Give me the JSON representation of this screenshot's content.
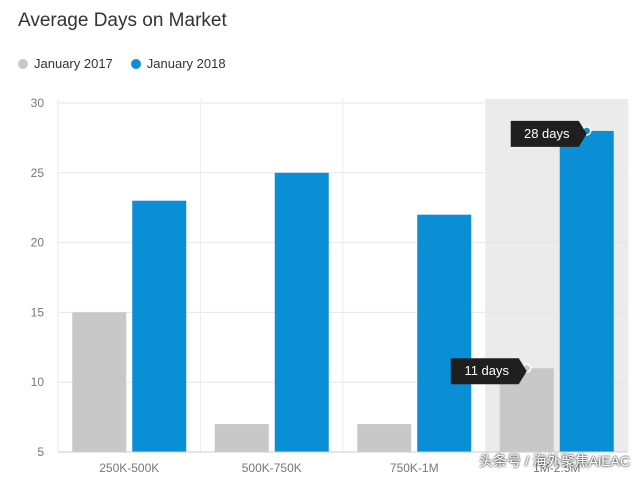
{
  "chart_data": {
    "type": "bar",
    "title": "Average Days on Market",
    "categories": [
      "250K-500K",
      "500K-750K",
      "750K-1M",
      "1M-2.5M"
    ],
    "series": [
      {
        "name": "January 2017",
        "color": "#c8c8c8",
        "values": [
          15,
          7,
          7,
          11
        ]
      },
      {
        "name": "January 2018",
        "color": "#0a8fd6",
        "values": [
          23,
          25,
          22,
          28
        ]
      }
    ],
    "ylim": [
      5,
      30
    ],
    "yticks": [
      5,
      10,
      15,
      20,
      25,
      30
    ],
    "grid": true,
    "legend_position": "top-left",
    "highlighted_category": "1M-2.5M",
    "tooltips": [
      {
        "series": 1,
        "category": 3,
        "text": "28 days"
      },
      {
        "series": 0,
        "category": 3,
        "text": "11 days"
      }
    ]
  },
  "watermark": "头条号 / 海外聚焦AiEAC"
}
